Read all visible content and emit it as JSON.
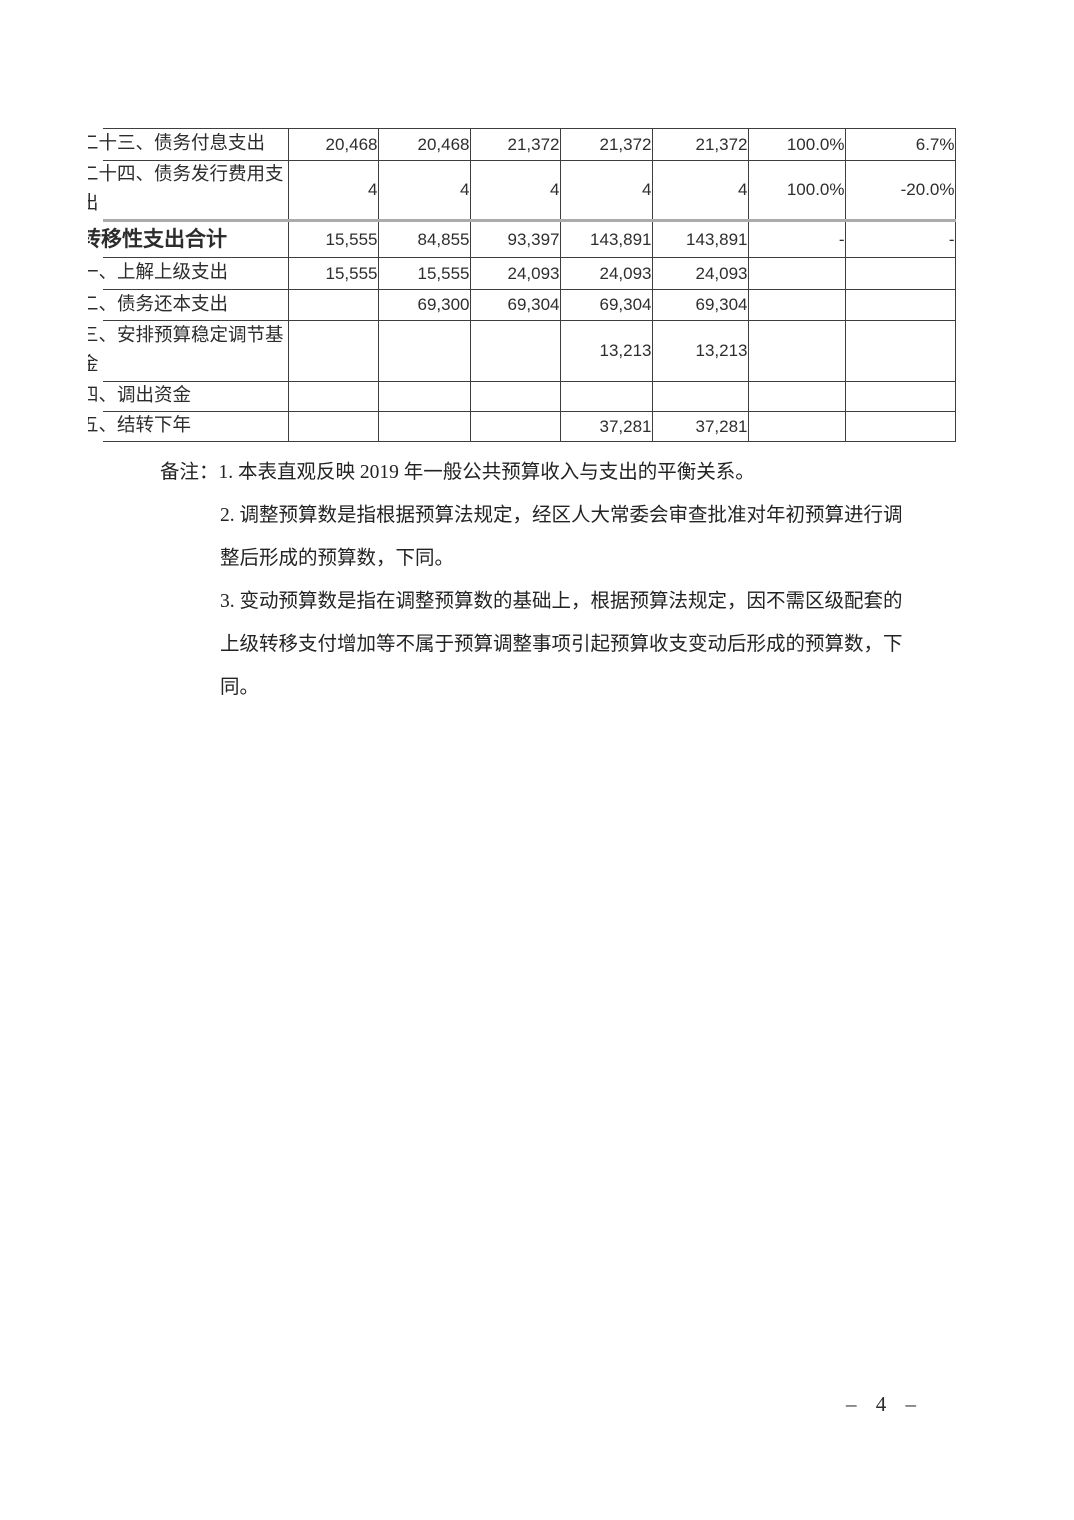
{
  "table": {
    "rows": [
      {
        "label": "二十三、债务付息支出",
        "bold": false,
        "values": [
          "20,468",
          "20,468",
          "21,372",
          "21,372",
          "21,372",
          "100.0%",
          "6.7%"
        ]
      },
      {
        "label": "二十四、债务发行费用支\n出",
        "bold": false,
        "values": [
          "4",
          "4",
          "4",
          "4",
          "4",
          "100.0%",
          "-20.0%"
        ]
      },
      {
        "label": "转移性支出合计",
        "bold": true,
        "values": [
          "15,555",
          "84,855",
          "93,397",
          "143,891",
          "143,891",
          "-",
          "-"
        ]
      },
      {
        "label": "一、上解上级支出",
        "bold": false,
        "values": [
          "15,555",
          "15,555",
          "24,093",
          "24,093",
          "24,093",
          "",
          ""
        ]
      },
      {
        "label": "二、债务还本支出",
        "bold": false,
        "values": [
          "",
          "69,300",
          "69,304",
          "69,304",
          "69,304",
          "",
          ""
        ]
      },
      {
        "label": "三、安排预算稳定调节基\n金",
        "bold": false,
        "values": [
          "",
          "",
          "",
          "13,213",
          "13,213",
          "",
          ""
        ]
      },
      {
        "label": "四、调出资金",
        "bold": false,
        "values": [
          "",
          "",
          "",
          "",
          "",
          "",
          ""
        ]
      },
      {
        "label": "五、结转下年",
        "bold": false,
        "values": [
          "",
          "",
          "",
          "37,281",
          "37,281",
          "",
          ""
        ]
      }
    ]
  },
  "notes": {
    "prefix": "备注：",
    "lines": [
      "1. 本表直观反映 2019 年一般公共预算收入与支出的平衡关系。",
      "2. 调整预算数是指根据预算法规定，经区人大常委会审查批准对年初预算进行调",
      "整后形成的预算数，下同。",
      "3. 变动预算数是指在调整预算数的基础上，根据预算法规定，因不需区级配套的",
      "上级转移支付增加等不属于预算调整事项引起预算收支变动后形成的预算数，下",
      "同。"
    ]
  },
  "footer": {
    "page_number": "– 4 –"
  }
}
